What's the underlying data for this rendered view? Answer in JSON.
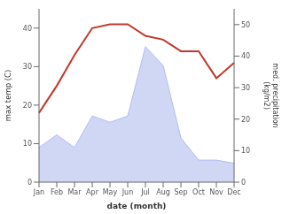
{
  "chart_data": {
    "type": "line",
    "categories": [
      "Jan",
      "Feb",
      "Mar",
      "Apr",
      "May",
      "Jun",
      "Jul",
      "Aug",
      "Sep",
      "Oct",
      "Nov",
      "Dec"
    ],
    "x_label": "date (month)",
    "y_label": "max temp (C)",
    "y2_label": "med. precipitation\n(kg/m2)",
    "series": [
      {
        "type": "line",
        "color": "#c0392b",
        "values": [
          18,
          25,
          33,
          40,
          41,
          41,
          38,
          37,
          34,
          34,
          27,
          31
        ]
      },
      {
        "type": "area",
        "axis": "y2",
        "color": "#b0bcee",
        "values": [
          11,
          15,
          11,
          21,
          19,
          21,
          43,
          37,
          14,
          7,
          7,
          6
        ]
      }
    ],
    "ylim": [
      0,
      45
    ],
    "yticks": [
      0,
      10,
      20,
      30,
      40
    ],
    "y2lim": [
      0,
      55
    ],
    "y2ticks": [
      0,
      10,
      20,
      30,
      40,
      50
    ],
    "grid": false
  }
}
